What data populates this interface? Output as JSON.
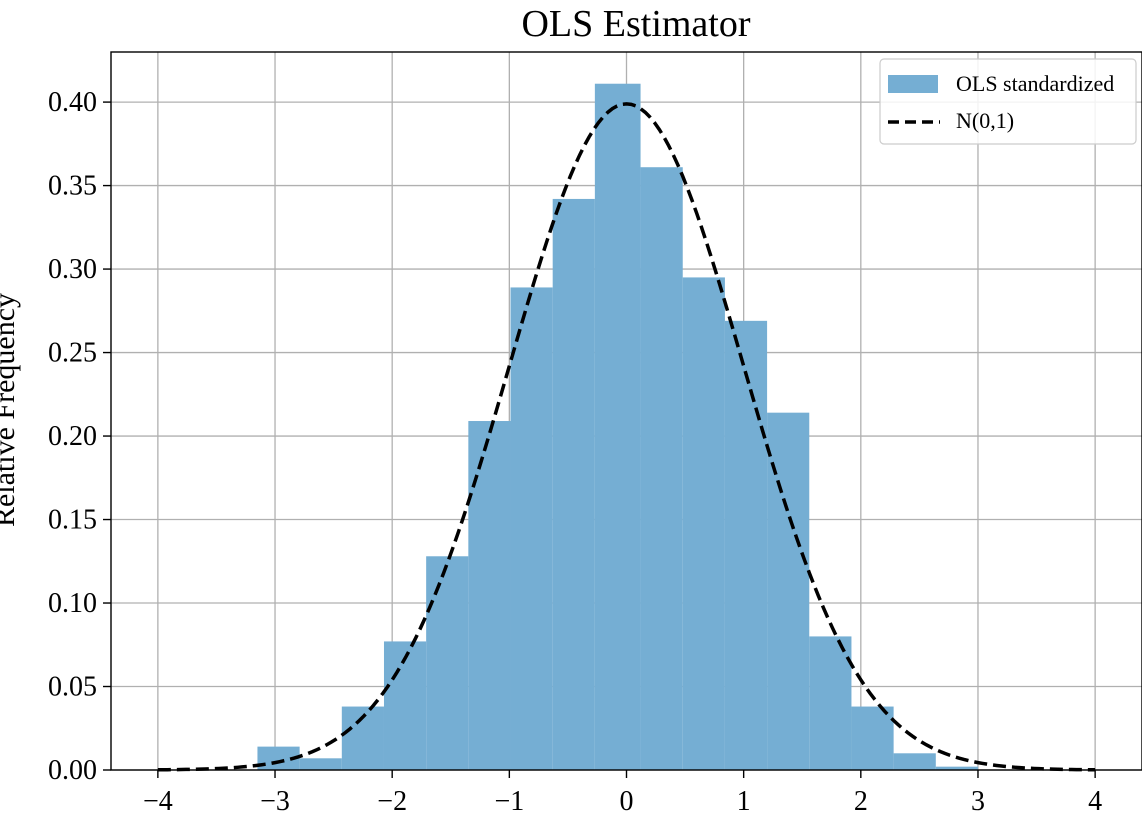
{
  "chart_data": {
    "type": "bar",
    "title": "OLS Estimator",
    "xlabel": "",
    "ylabel": "Relative Frequency",
    "xlim": [
      -4.4,
      4.4
    ],
    "ylim": [
      0,
      0.43
    ],
    "grid": true,
    "legend_position": "top-right",
    "bar_color": "#75aed3",
    "curve_color": "#000000",
    "xticks": [
      {
        "value": -4,
        "label": "−4"
      },
      {
        "value": -3,
        "label": "−3"
      },
      {
        "value": -2,
        "label": "−2"
      },
      {
        "value": -1,
        "label": "−1"
      },
      {
        "value": 0,
        "label": "0"
      },
      {
        "value": 1,
        "label": "1"
      },
      {
        "value": 2,
        "label": "2"
      },
      {
        "value": 3,
        "label": "3"
      },
      {
        "value": 4,
        "label": "4"
      }
    ],
    "yticks": [
      {
        "value": 0.0,
        "label": "0.00"
      },
      {
        "value": 0.05,
        "label": "0.05"
      },
      {
        "value": 0.1,
        "label": "0.10"
      },
      {
        "value": 0.15,
        "label": "0.15"
      },
      {
        "value": 0.2,
        "label": "0.20"
      },
      {
        "value": 0.25,
        "label": "0.25"
      },
      {
        "value": 0.3,
        "label": "0.30"
      },
      {
        "value": 0.35,
        "label": "0.35"
      },
      {
        "value": 0.4,
        "label": "0.40"
      }
    ],
    "bins": [
      {
        "x0": -3.15,
        "x1": -2.79,
        "value": 0.014
      },
      {
        "x0": -2.79,
        "x1": -2.43,
        "value": 0.007
      },
      {
        "x0": -2.43,
        "x1": -2.07,
        "value": 0.038
      },
      {
        "x0": -2.07,
        "x1": -1.71,
        "value": 0.077
      },
      {
        "x0": -1.71,
        "x1": -1.35,
        "value": 0.128
      },
      {
        "x0": -1.35,
        "x1": -0.99,
        "value": 0.209
      },
      {
        "x0": -0.99,
        "x1": -0.63,
        "value": 0.289
      },
      {
        "x0": -0.63,
        "x1": -0.27,
        "value": 0.342
      },
      {
        "x0": -0.27,
        "x1": 0.12,
        "value": 0.411
      },
      {
        "x0": 0.12,
        "x1": 0.48,
        "value": 0.361
      },
      {
        "x0": 0.48,
        "x1": 0.84,
        "value": 0.295
      },
      {
        "x0": 0.84,
        "x1": 1.2,
        "value": 0.269
      },
      {
        "x0": 1.2,
        "x1": 1.56,
        "value": 0.214
      },
      {
        "x0": 1.56,
        "x1": 1.92,
        "value": 0.08
      },
      {
        "x0": 1.92,
        "x1": 2.28,
        "value": 0.038
      },
      {
        "x0": 2.28,
        "x1": 2.64,
        "value": 0.01
      },
      {
        "x0": 2.64,
        "x1": 3.0,
        "value": 0.002
      }
    ],
    "series": [
      {
        "name": "OLS standardized",
        "kind": "histogram"
      },
      {
        "name": "N(0,1)",
        "kind": "normal-pdf",
        "mean": 0,
        "sd": 1,
        "x_range": [
          -4,
          4
        ]
      }
    ]
  }
}
